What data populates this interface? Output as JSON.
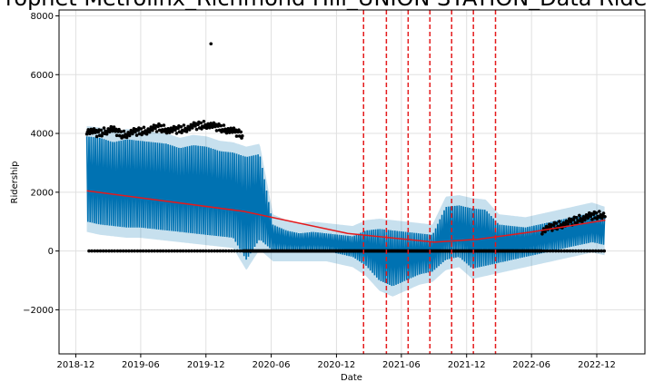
{
  "chart_data": {
    "type": "scatter",
    "title": "Prophet Metrolinx_Richmond Hill_UNION STATION_Data Ride",
    "xlabel": "Date",
    "ylabel": "Ridership",
    "xlim": [
      "2018-10-15",
      "2023-04-15"
    ],
    "ylim": [
      -3500,
      8200
    ],
    "x_ticks": [
      "2018-12",
      "2019-06",
      "2019-12",
      "2020-06",
      "2020-12",
      "2021-06",
      "2021-12",
      "2022-06",
      "2022-12"
    ],
    "y_ticks": [
      -2000,
      0,
      2000,
      4000,
      6000,
      8000
    ],
    "grid": true,
    "legend": "none",
    "colors": {
      "observed": "#000000",
      "forecast": "#0072b2",
      "uncertainty": "#0072b2",
      "trend": "#e41a1c",
      "changepoints": "#e41a1c"
    },
    "series": [
      {
        "role": "observed",
        "style": "black dots",
        "segments": [
          {
            "start": "2019-01-01",
            "end": "2020-03-13",
            "weekday_level": [
              4100,
              4000,
              4150,
              3950,
              4050,
              4100,
              4200,
              4100,
              4150,
              4250,
              4300,
              4200,
              4100,
              3950
            ],
            "weekend_level": 0
          },
          {
            "start": "2020-03-14",
            "end": "2021-01-31",
            "level": 0
          },
          {
            "start": "2021-02-01",
            "end": "2022-06-30",
            "level": 0
          },
          {
            "start": "2022-07-01",
            "end": "2022-12-25",
            "weekday_level": [
              700,
              850,
              950,
              1100,
              1200,
              1250
            ],
            "weekend_level": 0
          }
        ],
        "peak": {
          "x": "2019-12-15",
          "y": 7050
        }
      },
      {
        "role": "forecast",
        "style": "blue line",
        "weekly_high": [
          3900,
          3850,
          3700,
          3800,
          3750,
          3700,
          3650,
          3500,
          3600,
          3550,
          3400,
          3350,
          3200,
          3300,
          900,
          700,
          600,
          650,
          600,
          550,
          500,
          700,
          750,
          700,
          650,
          600,
          550,
          1500,
          1550,
          1450,
          1400,
          900,
          850,
          800,
          900,
          1000,
          1100,
          1200,
          1300,
          1150
        ],
        "weekly_low": [
          1000,
          900,
          850,
          800,
          800,
          750,
          700,
          650,
          600,
          550,
          500,
          450,
          -300,
          400,
          0,
          0,
          0,
          0,
          0,
          -100,
          -200,
          -500,
          -1000,
          -1200,
          -1000,
          -800,
          -700,
          -300,
          -200,
          -600,
          -500,
          -400,
          -300,
          -200,
          -100,
          0,
          100,
          200,
          300,
          200
        ]
      },
      {
        "role": "trend",
        "style": "red line",
        "x": [
          "2019-01-01",
          "2020-03-15",
          "2021-01-01",
          "2021-05-01",
          "2021-09-01",
          "2022-01-01",
          "2022-06-01",
          "2022-12-25"
        ],
        "y": [
          2050,
          1350,
          600,
          450,
          300,
          400,
          650,
          1050
        ]
      }
    ],
    "changepoints": [
      "2021-02-15",
      "2021-04-20",
      "2021-06-20",
      "2021-08-20",
      "2021-10-20",
      "2021-12-20",
      "2022-02-20"
    ]
  }
}
